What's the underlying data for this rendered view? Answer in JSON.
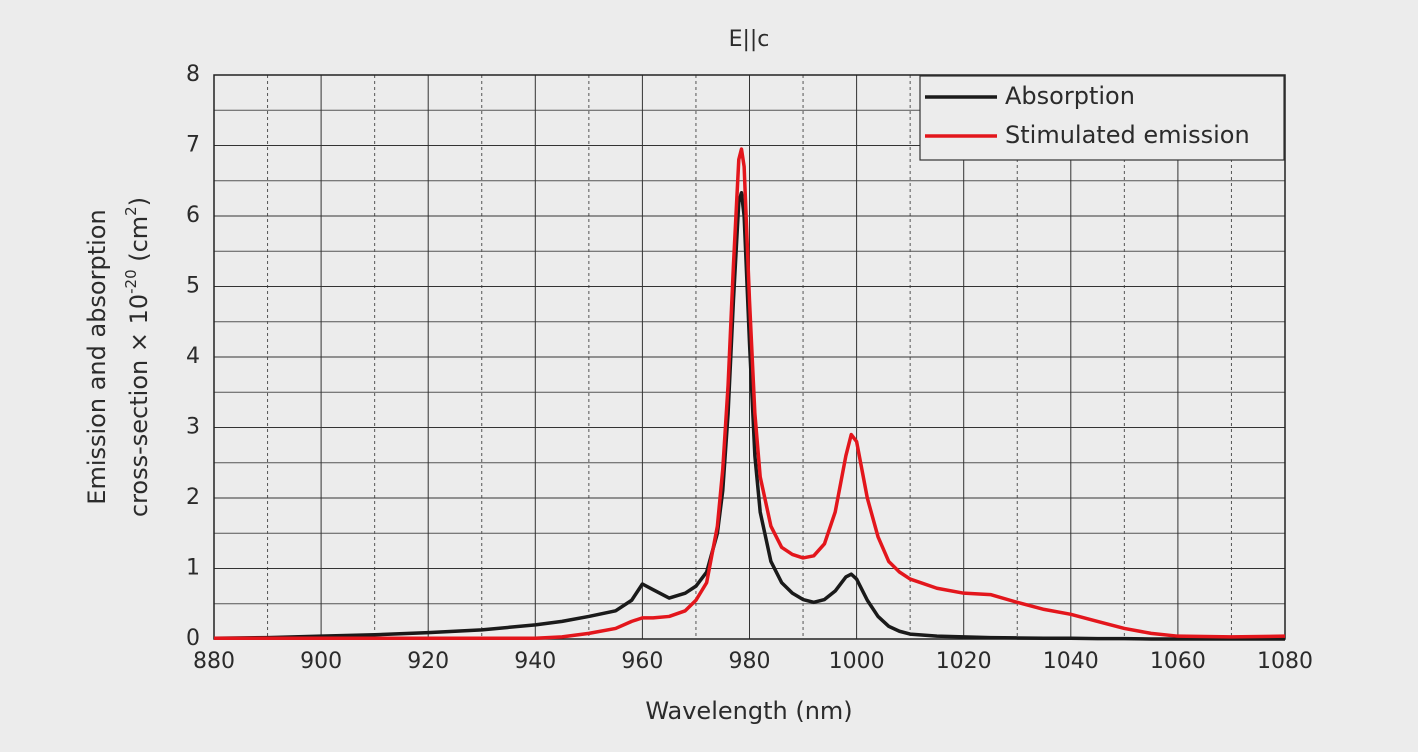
{
  "chart_data": {
    "type": "line",
    "title": "E||c",
    "xlabel": "Wavelength (nm)",
    "ylabel": [
      "Emission and absorption",
      [
        {
          "text": "cross-section × 10"
        },
        {
          "text": "-20",
          "sup": true
        },
        {
          "text": " (cm"
        },
        {
          "text": "2",
          "sup": true
        },
        {
          "text": ")"
        }
      ]
    ],
    "x": [
      880,
      890,
      900,
      910,
      920,
      930,
      940,
      945,
      950,
      955,
      958,
      960,
      962,
      965,
      968,
      970,
      972,
      974,
      975,
      976,
      977,
      978,
      978.5,
      979,
      980,
      981,
      982,
      984,
      986,
      988,
      990,
      992,
      994,
      996,
      998,
      999,
      1000,
      1002,
      1004,
      1006,
      1008,
      1010,
      1015,
      1020,
      1025,
      1030,
      1035,
      1040,
      1045,
      1050,
      1055,
      1060,
      1070,
      1080
    ],
    "series": [
      {
        "name": "Absorption",
        "color": "#1a1a1a",
        "values": [
          0.01,
          0.02,
          0.04,
          0.06,
          0.09,
          0.13,
          0.2,
          0.25,
          0.32,
          0.4,
          0.55,
          0.78,
          0.7,
          0.58,
          0.65,
          0.75,
          0.95,
          1.5,
          2.1,
          3.2,
          4.8,
          6.2,
          6.33,
          6.0,
          4.2,
          2.6,
          1.8,
          1.1,
          0.8,
          0.65,
          0.56,
          0.52,
          0.56,
          0.68,
          0.88,
          0.92,
          0.85,
          0.55,
          0.32,
          0.18,
          0.11,
          0.07,
          0.04,
          0.03,
          0.02,
          0.015,
          0.01,
          0.01,
          0.005,
          0.005,
          0,
          0,
          0,
          0
        ]
      },
      {
        "name": "Stimulated emission",
        "color": "#e3161c",
        "values": [
          0.01,
          0.01,
          0.01,
          0.01,
          0.01,
          0.01,
          0.01,
          0.03,
          0.08,
          0.15,
          0.25,
          0.3,
          0.3,
          0.32,
          0.4,
          0.55,
          0.8,
          1.6,
          2.4,
          3.6,
          5.3,
          6.8,
          6.95,
          6.7,
          4.8,
          3.2,
          2.3,
          1.6,
          1.3,
          1.2,
          1.15,
          1.18,
          1.35,
          1.8,
          2.6,
          2.9,
          2.8,
          2.0,
          1.45,
          1.1,
          0.95,
          0.85,
          0.72,
          0.65,
          0.63,
          0.52,
          0.42,
          0.35,
          0.25,
          0.15,
          0.08,
          0.04,
          0.03,
          0.04
        ]
      }
    ],
    "xlim": [
      880,
      1080
    ],
    "xticks": [
      880,
      900,
      920,
      940,
      960,
      980,
      1000,
      1020,
      1040,
      1060,
      1080
    ],
    "xminorticks": [
      890,
      910,
      930,
      950,
      970,
      990,
      1010,
      1030,
      1050,
      1070
    ],
    "ylim": [
      0,
      8
    ],
    "yticks": [
      0,
      1,
      2,
      3,
      4,
      5,
      6,
      7,
      8
    ],
    "yminorticks": [
      0.5,
      1.5,
      2.5,
      3.5,
      4.5,
      5.5,
      6.5,
      7.5
    ],
    "grid": true,
    "legend": "upper right"
  }
}
